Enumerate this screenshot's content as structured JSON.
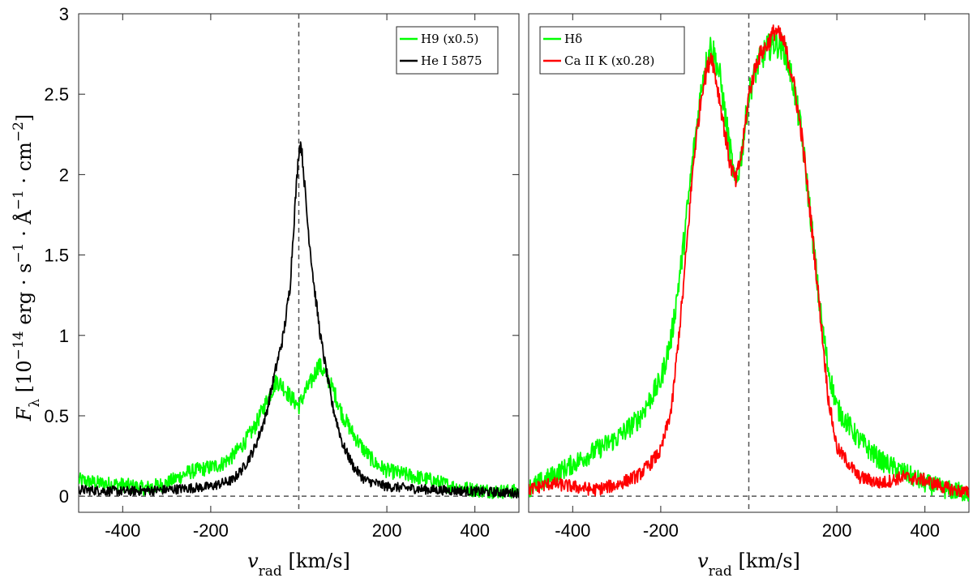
{
  "chart_data": [
    {
      "type": "line",
      "title": "",
      "xlabel": "v_rad [km/s]",
      "ylabel": "F_λ [10^−14 erg · s^−1 · Å^−1 · cm^−2]",
      "xlim": [
        -500,
        500
      ],
      "ylim": [
        -0.1,
        3
      ],
      "xticks": [
        -400,
        -200,
        200,
        400
      ],
      "xtick_labels": [
        "-400",
        "-200",
        "200",
        "400"
      ],
      "yticks": [
        0,
        0.5,
        1,
        1.5,
        2,
        2.5,
        3
      ],
      "ytick_labels": [
        "0",
        "0.5",
        "1",
        "1.5",
        "2",
        "2.5",
        "3"
      ],
      "grid": false,
      "legend_position": "top-right",
      "reference_lines": {
        "x": 0,
        "y": 0,
        "style": "dashed"
      },
      "series": [
        {
          "name": "H9 (x0.5)",
          "color": "#00ff00",
          "x": [
            -500,
            -450,
            -400,
            -350,
            -300,
            -250,
            -200,
            -175,
            -150,
            -125,
            -100,
            -75,
            -50,
            -35,
            -20,
            0,
            15,
            30,
            45,
            60,
            80,
            100,
            125,
            150,
            175,
            200,
            250,
            300,
            350,
            400,
            450,
            500
          ],
          "y": [
            0.1,
            0.08,
            0.07,
            0.05,
            0.08,
            0.15,
            0.18,
            0.2,
            0.25,
            0.33,
            0.43,
            0.58,
            0.72,
            0.68,
            0.62,
            0.56,
            0.65,
            0.72,
            0.82,
            0.76,
            0.65,
            0.5,
            0.38,
            0.28,
            0.2,
            0.16,
            0.13,
            0.1,
            0.06,
            0.04,
            0.03,
            0.03
          ],
          "noise": 0.045
        },
        {
          "name": "He I 5875",
          "color": "#000000",
          "x": [
            -500,
            -400,
            -300,
            -200,
            -150,
            -125,
            -100,
            -75,
            -50,
            -35,
            -20,
            -10,
            0,
            5,
            10,
            20,
            35,
            50,
            75,
            100,
            125,
            150,
            200,
            300,
            400,
            500
          ],
          "y": [
            0.04,
            0.03,
            0.04,
            0.06,
            0.1,
            0.18,
            0.3,
            0.5,
            0.82,
            1.0,
            1.3,
            1.75,
            2.15,
            2.2,
            2.05,
            1.7,
            1.3,
            0.98,
            0.58,
            0.32,
            0.18,
            0.1,
            0.06,
            0.04,
            0.03,
            0.02
          ],
          "noise": 0.03
        }
      ]
    },
    {
      "type": "line",
      "title": "",
      "xlabel": "v_rad [km/s]",
      "ylabel": "",
      "xlim": [
        -500,
        500
      ],
      "ylim": [
        -0.1,
        3
      ],
      "xticks": [
        -400,
        -200,
        200,
        400
      ],
      "xtick_labels": [
        "-400",
        "-200",
        "200",
        "400"
      ],
      "yticks": [],
      "ytick_labels": [],
      "grid": false,
      "legend_position": "top-left",
      "reference_lines": {
        "x": 0,
        "y": 0,
        "style": "dashed"
      },
      "series": [
        {
          "name": "Hδ",
          "color": "#00ff00",
          "x": [
            -500,
            -450,
            -400,
            -350,
            -300,
            -250,
            -200,
            -175,
            -150,
            -125,
            -105,
            -85,
            -65,
            -45,
            -30,
            -15,
            0,
            20,
            40,
            60,
            80,
            100,
            120,
            140,
            160,
            180,
            200,
            250,
            300,
            350,
            400,
            450,
            500
          ],
          "y": [
            0.05,
            0.12,
            0.2,
            0.28,
            0.36,
            0.48,
            0.72,
            1.0,
            1.52,
            2.15,
            2.6,
            2.82,
            2.6,
            2.2,
            1.92,
            2.15,
            2.5,
            2.68,
            2.78,
            2.82,
            2.78,
            2.58,
            2.25,
            1.75,
            1.2,
            0.8,
            0.55,
            0.35,
            0.22,
            0.15,
            0.08,
            0.04,
            0.02
          ],
          "noise": 0.06
        },
        {
          "name": "Ca II K (x0.28)",
          "color": "#ff0000",
          "x": [
            -500,
            -450,
            -400,
            -350,
            -300,
            -250,
            -225,
            -200,
            -175,
            -150,
            -125,
            -105,
            -85,
            -65,
            -45,
            -30,
            -15,
            0,
            20,
            40,
            60,
            80,
            100,
            120,
            140,
            160,
            180,
            200,
            250,
            300,
            350,
            400,
            450,
            500
          ],
          "y": [
            0.04,
            0.08,
            0.06,
            0.04,
            0.07,
            0.13,
            0.2,
            0.28,
            0.55,
            1.25,
            2.1,
            2.55,
            2.75,
            2.45,
            2.1,
            1.95,
            2.15,
            2.5,
            2.72,
            2.8,
            2.9,
            2.82,
            2.6,
            2.25,
            1.75,
            1.2,
            0.62,
            0.3,
            0.12,
            0.08,
            0.12,
            0.1,
            0.05,
            0.02
          ],
          "noise": 0.04
        }
      ]
    }
  ]
}
